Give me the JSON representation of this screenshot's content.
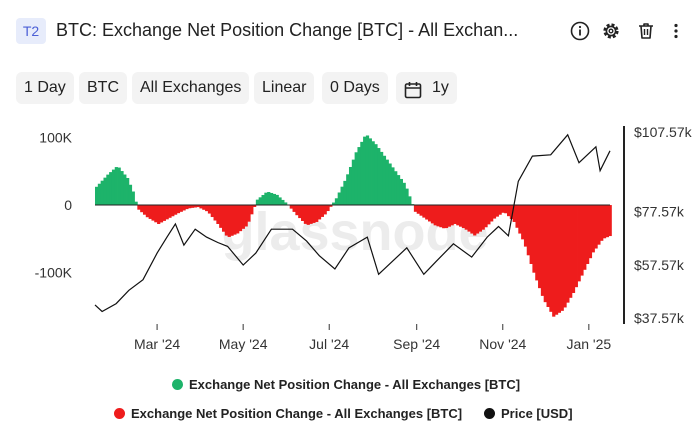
{
  "header": {
    "badge": "T2",
    "title": "BTC: Exchange Net Position Change [BTC] - All Exchan...",
    "icons": [
      "info-icon",
      "gear-icon",
      "trash-icon",
      "more-vertical-icon"
    ]
  },
  "toolbar": {
    "resolution": "1 Day",
    "asset": "BTC",
    "exchange": "All Exchanges",
    "scale": "Linear",
    "sma": "0 Days",
    "range": "1y"
  },
  "watermark": "glassnode",
  "colors": {
    "positive": "#1db36a",
    "negative": "#ee1c1c",
    "price": "#111111"
  },
  "legend": {
    "positive": "Exchange Net Position Change - All Exchanges [BTC]",
    "negative": "Exchange Net Position Change - All Exchanges [BTC]",
    "price": "Price [USD]"
  },
  "chart_data": {
    "type": "bar",
    "x_ticks": [
      "Mar '24",
      "May '24",
      "Jul '24",
      "Sep '24",
      "Nov '24",
      "Jan '25"
    ],
    "y_left_ticks": [
      "100K",
      "0",
      "-100K"
    ],
    "y_right_ticks": [
      "$107.57k",
      "$77.57k",
      "$57.57k",
      "$37.57k"
    ],
    "ylim_left": [
      -167000,
      108000
    ],
    "ylim_right": [
      37570,
      107570
    ],
    "x_range": [
      "2024-01-17",
      "2025-01-16"
    ],
    "net_position_change_btc": [
      [
        "2024-01-17",
        27000
      ],
      [
        "2024-01-25",
        45000
      ],
      [
        "2024-02-01",
        58000
      ],
      [
        "2024-02-08",
        40000
      ],
      [
        "2024-02-13",
        15000
      ],
      [
        "2024-02-15",
        -5000
      ],
      [
        "2024-02-22",
        -18000
      ],
      [
        "2024-03-01",
        -28000
      ],
      [
        "2024-03-08",
        -20000
      ],
      [
        "2024-03-15",
        -12000
      ],
      [
        "2024-03-22",
        -5000
      ],
      [
        "2024-03-29",
        -3000
      ],
      [
        "2024-04-05",
        -10000
      ],
      [
        "2024-04-12",
        -28000
      ],
      [
        "2024-04-19",
        -48000
      ],
      [
        "2024-04-26",
        -42000
      ],
      [
        "2024-05-03",
        -30000
      ],
      [
        "2024-05-10",
        8000
      ],
      [
        "2024-05-17",
        20000
      ],
      [
        "2024-05-24",
        15000
      ],
      [
        "2024-05-31",
        2000
      ],
      [
        "2024-06-07",
        -15000
      ],
      [
        "2024-06-14",
        -30000
      ],
      [
        "2024-06-21",
        -25000
      ],
      [
        "2024-06-28",
        -12000
      ],
      [
        "2024-07-05",
        10000
      ],
      [
        "2024-07-12",
        40000
      ],
      [
        "2024-07-19",
        78000
      ],
      [
        "2024-07-26",
        105000
      ],
      [
        "2024-08-02",
        90000
      ],
      [
        "2024-08-09",
        70000
      ],
      [
        "2024-08-16",
        50000
      ],
      [
        "2024-08-23",
        30000
      ],
      [
        "2024-08-30",
        -10000
      ],
      [
        "2024-09-06",
        -20000
      ],
      [
        "2024-09-13",
        -30000
      ],
      [
        "2024-09-20",
        -35000
      ],
      [
        "2024-09-27",
        -28000
      ],
      [
        "2024-10-04",
        -35000
      ],
      [
        "2024-10-11",
        -45000
      ],
      [
        "2024-10-18",
        -35000
      ],
      [
        "2024-10-25",
        -20000
      ],
      [
        "2024-11-01",
        -10000
      ],
      [
        "2024-11-08",
        -25000
      ],
      [
        "2024-11-15",
        -55000
      ],
      [
        "2024-11-22",
        -100000
      ],
      [
        "2024-11-29",
        -140000
      ],
      [
        "2024-12-06",
        -165000
      ],
      [
        "2024-12-13",
        -155000
      ],
      [
        "2024-12-20",
        -130000
      ],
      [
        "2024-12-27",
        -100000
      ],
      [
        "2025-01-03",
        -70000
      ],
      [
        "2025-01-10",
        -50000
      ],
      [
        "2025-01-16",
        -45000
      ]
    ],
    "price_usd": [
      [
        "2024-01-17",
        42500
      ],
      [
        "2024-01-22",
        40000
      ],
      [
        "2024-02-01",
        43000
      ],
      [
        "2024-02-10",
        48000
      ],
      [
        "2024-02-20",
        52000
      ],
      [
        "2024-03-01",
        62000
      ],
      [
        "2024-03-08",
        68000
      ],
      [
        "2024-03-14",
        73000
      ],
      [
        "2024-03-20",
        65000
      ],
      [
        "2024-03-28",
        71000
      ],
      [
        "2024-04-05",
        68000
      ],
      [
        "2024-04-13",
        66000
      ],
      [
        "2024-04-20",
        64500
      ],
      [
        "2024-05-01",
        57500
      ],
      [
        "2024-05-10",
        62000
      ],
      [
        "2024-05-21",
        71000
      ],
      [
        "2024-06-05",
        71000
      ],
      [
        "2024-06-15",
        66500
      ],
      [
        "2024-06-24",
        61000
      ],
      [
        "2024-07-05",
        56000
      ],
      [
        "2024-07-15",
        64000
      ],
      [
        "2024-07-28",
        68000
      ],
      [
        "2024-08-05",
        54000
      ],
      [
        "2024-08-15",
        59000
      ],
      [
        "2024-08-25",
        64000
      ],
      [
        "2024-09-06",
        54000
      ],
      [
        "2024-09-15",
        59000
      ],
      [
        "2024-09-27",
        65500
      ],
      [
        "2024-10-10",
        60500
      ],
      [
        "2024-10-21",
        68000
      ],
      [
        "2024-10-29",
        72000
      ],
      [
        "2024-11-05",
        68500
      ],
      [
        "2024-11-12",
        89000
      ],
      [
        "2024-11-22",
        98500
      ],
      [
        "2024-12-05",
        99000
      ],
      [
        "2024-12-17",
        106500
      ],
      [
        "2024-12-25",
        96000
      ],
      [
        "2025-01-06",
        102000
      ],
      [
        "2025-01-09",
        93000
      ],
      [
        "2025-01-16",
        100500
      ]
    ]
  }
}
